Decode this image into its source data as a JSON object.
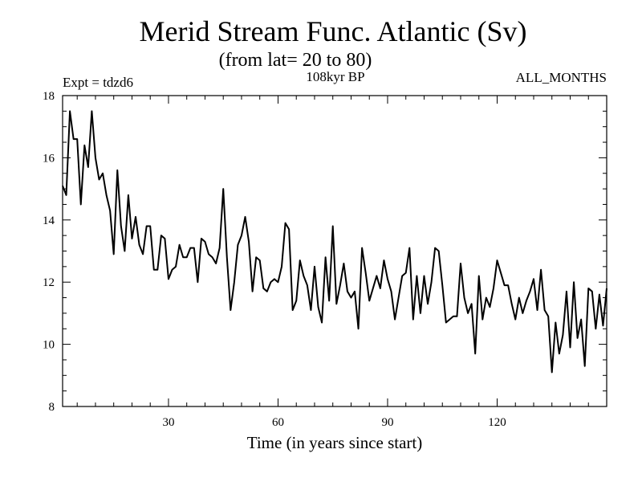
{
  "chart_data": {
    "type": "line",
    "title": "Merid Stream Func. Atlantic (Sv)",
    "subtitle": "(from lat= 20 to 80)",
    "experiment": "Expt = tdzd6",
    "period": "108kyr BP",
    "months": "ALL_MONTHS",
    "xlabel": "Time (in years since start)",
    "ylabel": "",
    "xlim": [
      1,
      150
    ],
    "ylim": [
      8,
      18
    ],
    "x_ticks": [
      30,
      60,
      90,
      120
    ],
    "y_ticks": [
      8,
      10,
      12,
      14,
      16,
      18
    ],
    "x_start": 1,
    "x_step": 1,
    "series": [
      {
        "name": "Atlantic meridional stream function",
        "color": "#000000",
        "values": [
          15.1,
          14.8,
          17.5,
          16.6,
          16.6,
          14.5,
          16.4,
          15.7,
          17.5,
          16.0,
          15.3,
          15.5,
          14.8,
          14.3,
          12.9,
          15.6,
          13.8,
          13.0,
          14.8,
          13.4,
          14.1,
          13.2,
          12.9,
          13.8,
          13.8,
          12.4,
          12.4,
          13.5,
          13.4,
          12.1,
          12.4,
          12.5,
          13.2,
          12.8,
          12.8,
          13.1,
          13.1,
          12.0,
          13.4,
          13.3,
          12.9,
          12.8,
          12.6,
          13.1,
          15.0,
          12.8,
          11.1,
          12.0,
          13.2,
          13.5,
          14.1,
          13.3,
          11.7,
          12.8,
          12.7,
          11.8,
          11.7,
          12.0,
          12.1,
          12.0,
          12.5,
          13.9,
          13.7,
          11.1,
          11.4,
          12.7,
          12.2,
          11.9,
          11.1,
          12.5,
          11.2,
          10.7,
          12.8,
          11.4,
          13.8,
          11.3,
          11.9,
          12.6,
          11.7,
          11.5,
          11.7,
          10.5,
          13.1,
          12.3,
          11.4,
          11.8,
          12.2,
          11.8,
          12.7,
          12.1,
          11.7,
          10.8,
          11.5,
          12.2,
          12.3,
          13.1,
          10.8,
          12.2,
          11.0,
          12.2,
          11.3,
          12.0,
          13.1,
          13.0,
          11.9,
          10.7,
          10.8,
          10.9,
          10.9,
          12.6,
          11.5,
          11.0,
          11.3,
          9.7,
          12.2,
          10.8,
          11.5,
          11.2,
          11.8,
          12.7,
          12.3,
          11.9,
          11.9,
          11.3,
          10.8,
          11.5,
          11.0,
          11.4,
          11.7,
          12.1,
          11.1,
          12.4,
          11.1,
          10.9,
          9.1,
          10.7,
          9.7,
          10.3,
          11.7,
          9.9,
          12.0,
          10.2,
          10.8,
          9.3,
          11.8,
          11.7,
          10.5,
          11.6,
          10.6,
          11.8
        ]
      }
    ]
  }
}
